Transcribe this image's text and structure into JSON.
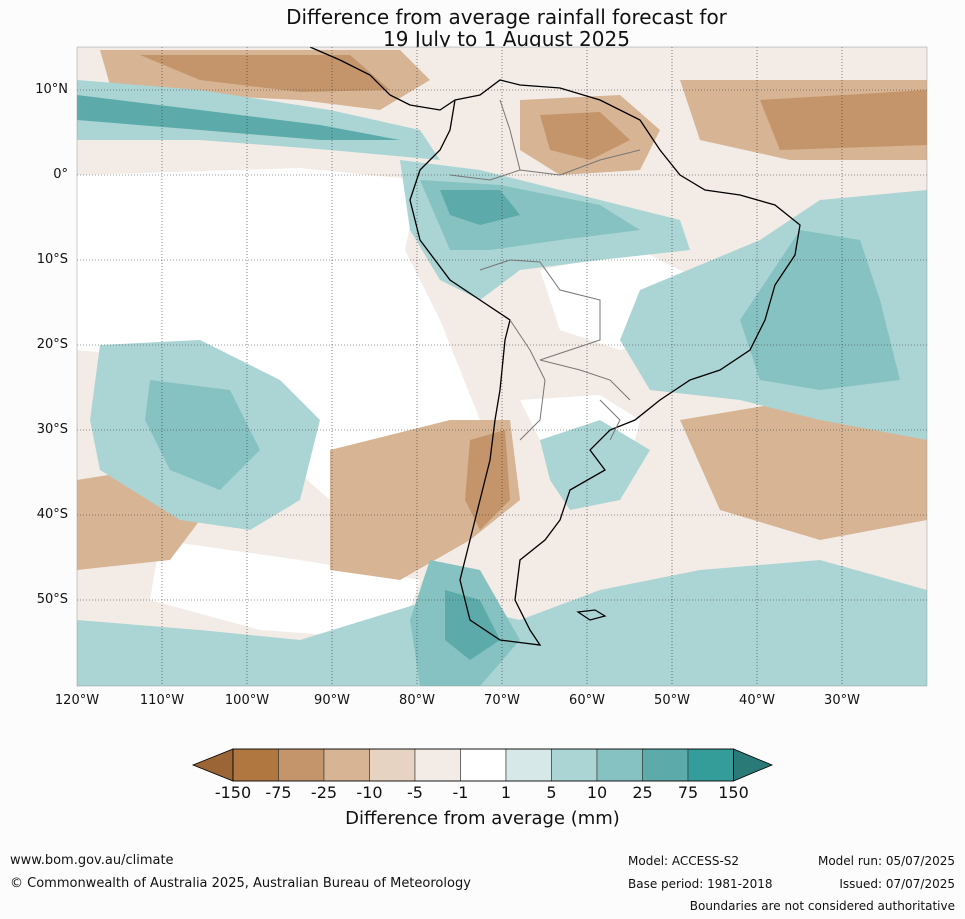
{
  "title": {
    "line1": "Difference from average rainfall forecast for",
    "line2": "19 July to 1 August 2025"
  },
  "map": {
    "lat_labels": [
      "10°N",
      "0°",
      "10°S",
      "20°S",
      "30°S",
      "40°S",
      "50°S"
    ],
    "lon_labels": [
      "120°W",
      "110°W",
      "100°W",
      "90°W",
      "80°W",
      "70°W",
      "60°W",
      "50°W",
      "40°W",
      "30°W"
    ]
  },
  "colorbar": {
    "title": "Difference from average (mm)",
    "tick_labels": [
      "-150",
      "-75",
      "-25",
      "-10",
      "-5",
      "-1",
      "1",
      "5",
      "10",
      "25",
      "75",
      "150"
    ],
    "colors": [
      "#b07840",
      "#c4956a",
      "#d6b494",
      "#e6d3c1",
      "#f3ebe5",
      "#ffffff",
      "#d6e9e8",
      "#abd5d4",
      "#86c2c1",
      "#5cabaa",
      "#349c99"
    ],
    "under_color": "#9c6535",
    "over_color": "#2a7b78"
  },
  "footer": {
    "website": "www.bom.gov.au/climate",
    "copyright": "© Commonwealth of Australia 2025, Australian Bureau of Meteorology",
    "model": "Model: ACCESS-S2",
    "base_period": "Base period: 1981-2018",
    "model_run": "Model run: 05/07/2025",
    "issued": "Issued: 07/07/2025",
    "disclaimer": "Boundaries are not considered authoritative"
  }
}
